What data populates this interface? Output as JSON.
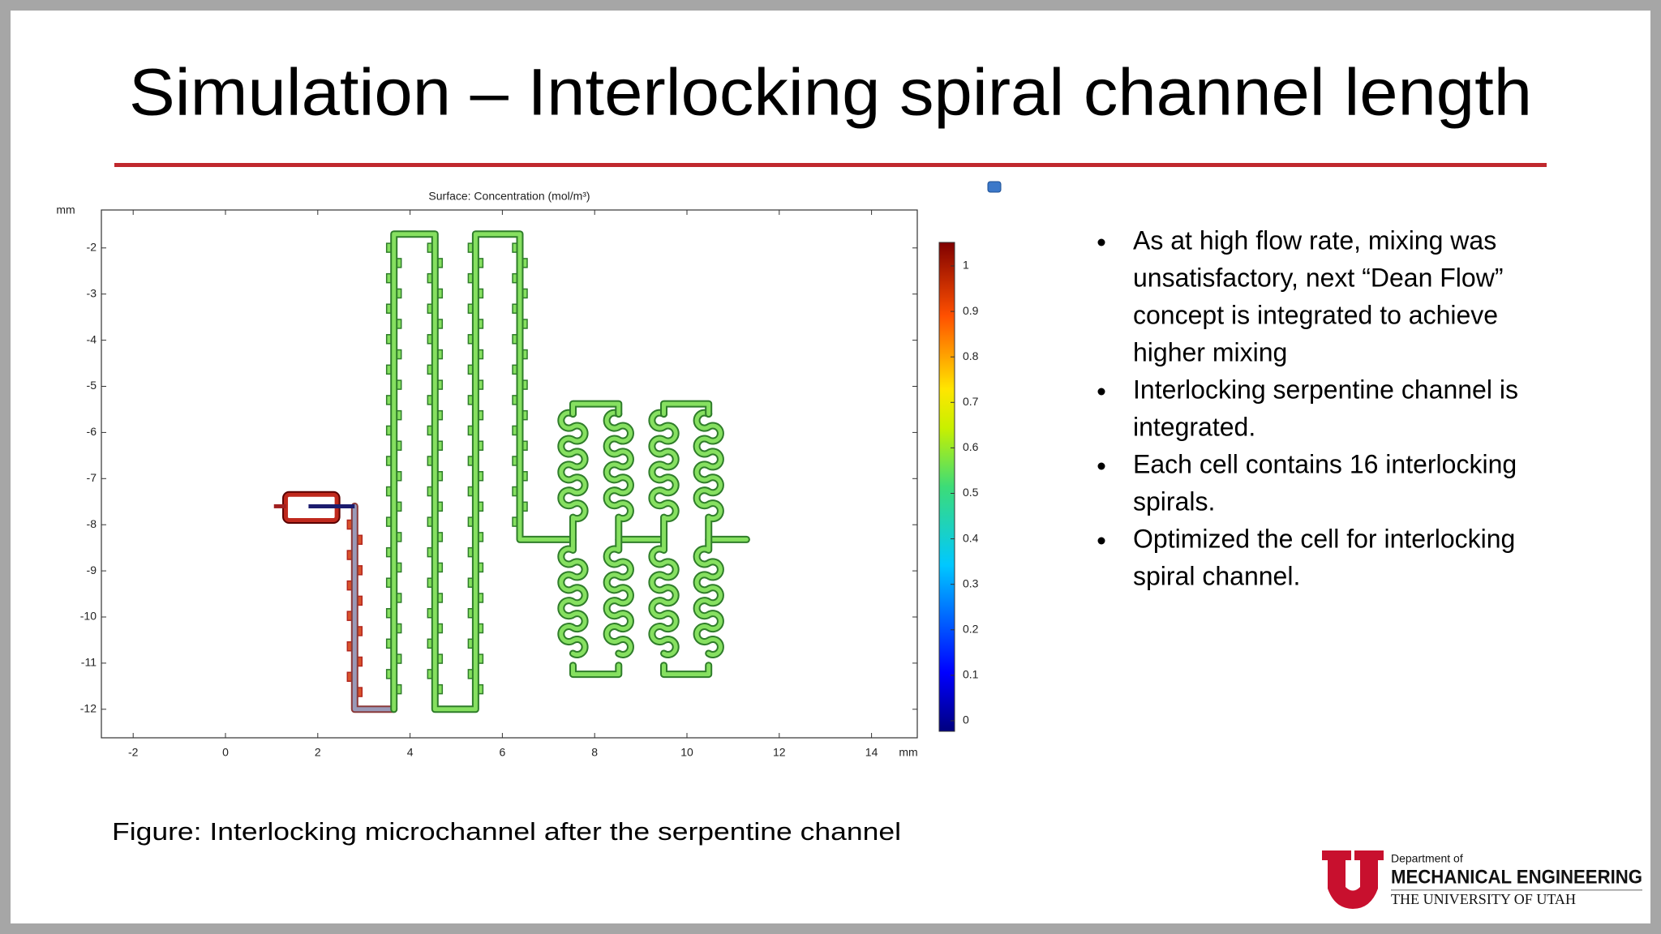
{
  "header": {
    "title": "Simulation – Interlocking spiral channel length"
  },
  "figure": {
    "title": "Surface: Concentration (mol/m³)",
    "x_unit": "mm",
    "y_unit": "mm",
    "xticks": [
      -2,
      0,
      2,
      4,
      6,
      8,
      10,
      12,
      14
    ],
    "yticks": [
      -2,
      -3,
      -4,
      -5,
      -6,
      -7,
      -8,
      -9,
      -10,
      -11,
      -12
    ],
    "colorbar_ticks": [
      1,
      0.9,
      0.8,
      0.7,
      0.6,
      0.5,
      0.4,
      0.3,
      0.2,
      0.1,
      0
    ]
  },
  "bullets": [
    [
      "As at high flow rate, mixing was",
      "unsatisfactory, next “Dean Flow”",
      "concept is integrated to achieve",
      "higher mixing"
    ],
    [
      "Interlocking serpentine channel is",
      "integrated."
    ],
    [
      "Each cell contains 16 interlocking",
      "spirals."
    ],
    [
      "Optimized the cell for interlocking",
      "spiral channel."
    ]
  ],
  "caption": "Figure: Interlocking microchannel after the serpentine channel",
  "logo": {
    "department": "Department of",
    "name": "MECHANICAL ENGINEERING",
    "university": "THE UNIVERSITY OF UTAH"
  }
}
